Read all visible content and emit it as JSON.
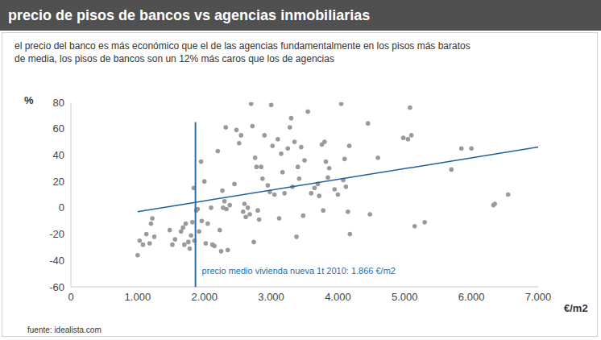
{
  "chart_data": {
    "type": "scatter",
    "title": "precio de pisos de bancos vs agencias inmobiliarias",
    "subtitle": [
      "el precio del banco es más económico que el de las agencias fundamentalmente en los pisos más baratos",
      "de media, los pisos de bancos son un 12% más caros que los de agencias"
    ],
    "x_label": "€/m2",
    "y_label": "%",
    "source": "fuente: idealista.com",
    "xlim": [
      0,
      7000
    ],
    "xticks": [
      0,
      {
        "value": 1000,
        "label": "1.000"
      },
      {
        "value": 2000,
        "label": "2.000"
      },
      {
        "value": 3000,
        "label": "3.000"
      },
      {
        "value": 4000,
        "label": "4.000"
      },
      {
        "value": 5000,
        "label": "5.000"
      },
      {
        "value": 6000,
        "label": "6.000"
      },
      {
        "value": 7000,
        "label": "7.000"
      }
    ],
    "ylim": [
      -60,
      80
    ],
    "yticks": [
      -60,
      -40,
      -20,
      0,
      20,
      40,
      60,
      80
    ],
    "grid": false,
    "series": [
      {
        "type": "scatter",
        "color": "#9a9a9a",
        "marker": "circle",
        "x": [
          1000,
          1030,
          1080,
          1130,
          1180,
          1200,
          1220,
          1250,
          1480,
          1520,
          1560,
          1650,
          1680,
          1700,
          1720,
          1760,
          1780,
          1800,
          1820,
          1840,
          1850,
          1880,
          1900,
          1920,
          1950,
          1960,
          2000,
          2020,
          2050,
          2100,
          2120,
          2150,
          2200,
          2230,
          2250,
          2270,
          2280,
          2300,
          2320,
          2330,
          2350,
          2380,
          2450,
          2480,
          2520,
          2550,
          2580,
          2600,
          2620,
          2650,
          2680,
          2700,
          2720,
          2740,
          2760,
          2780,
          2800,
          2820,
          2850,
          2870,
          2900,
          2950,
          2980,
          3000,
          3020,
          3050,
          3100,
          3120,
          3150,
          3170,
          3200,
          3250,
          3280,
          3300,
          3320,
          3350,
          3380,
          3400,
          3420,
          3450,
          3480,
          3500,
          3550,
          3600,
          3650,
          3700,
          3720,
          3760,
          3780,
          3800,
          3820,
          3850,
          3870,
          3950,
          4000,
          4050,
          4080,
          4100,
          4120,
          4150,
          4170,
          4180,
          4450,
          4480,
          4600,
          4980,
          5050,
          5080,
          5100,
          5150,
          5300,
          5700,
          5850,
          6000,
          6330,
          6350,
          6550
        ],
        "values": [
          -36,
          -25,
          -28,
          -20,
          -27,
          -12,
          -8,
          -22,
          -17,
          -28,
          -24,
          -18,
          -15,
          -28,
          -12,
          -26,
          -31,
          -21,
          -11,
          15,
          -25,
          -2,
          -1,
          -18,
          35,
          -10,
          20,
          -27,
          -12,
          0,
          -28,
          -29,
          43,
          -17,
          -33,
          13,
          0,
          5,
          61,
          -1,
          -32,
          2,
          18,
          59,
          49,
          55,
          -3,
          3,
          -7,
          0,
          -5,
          79,
          62,
          -26,
          38,
          31,
          -2,
          -9,
          31,
          22,
          55,
          17,
          12,
          78,
          47,
          10,
          52,
          -8,
          41,
          27,
          11,
          45,
          61,
          68,
          16,
          50,
          -22,
          31,
          22,
          46,
          -6,
          36,
          73,
          11,
          15,
          18,
          9,
          48,
          -2,
          50,
          35,
          23,
          30,
          14,
          10,
          79,
          21,
          37,
          16,
          -3,
          47,
          -20,
          64,
          -5,
          38,
          53,
          52,
          76,
          55,
          -14,
          -11,
          29,
          45,
          45,
          2,
          3,
          10
        ]
      },
      {
        "type": "line",
        "color": "#1f5f9e",
        "line_style": "solid",
        "x": [
          1000,
          7000
        ],
        "values": [
          -3,
          46
        ]
      }
    ],
    "annotations": [
      {
        "x": 1866,
        "y_range": [
          -60,
          65
        ],
        "text": "precio medio vivienda nueva 1t 2010: 1.866 €/m2",
        "color": "#2a6ea8"
      }
    ]
  }
}
